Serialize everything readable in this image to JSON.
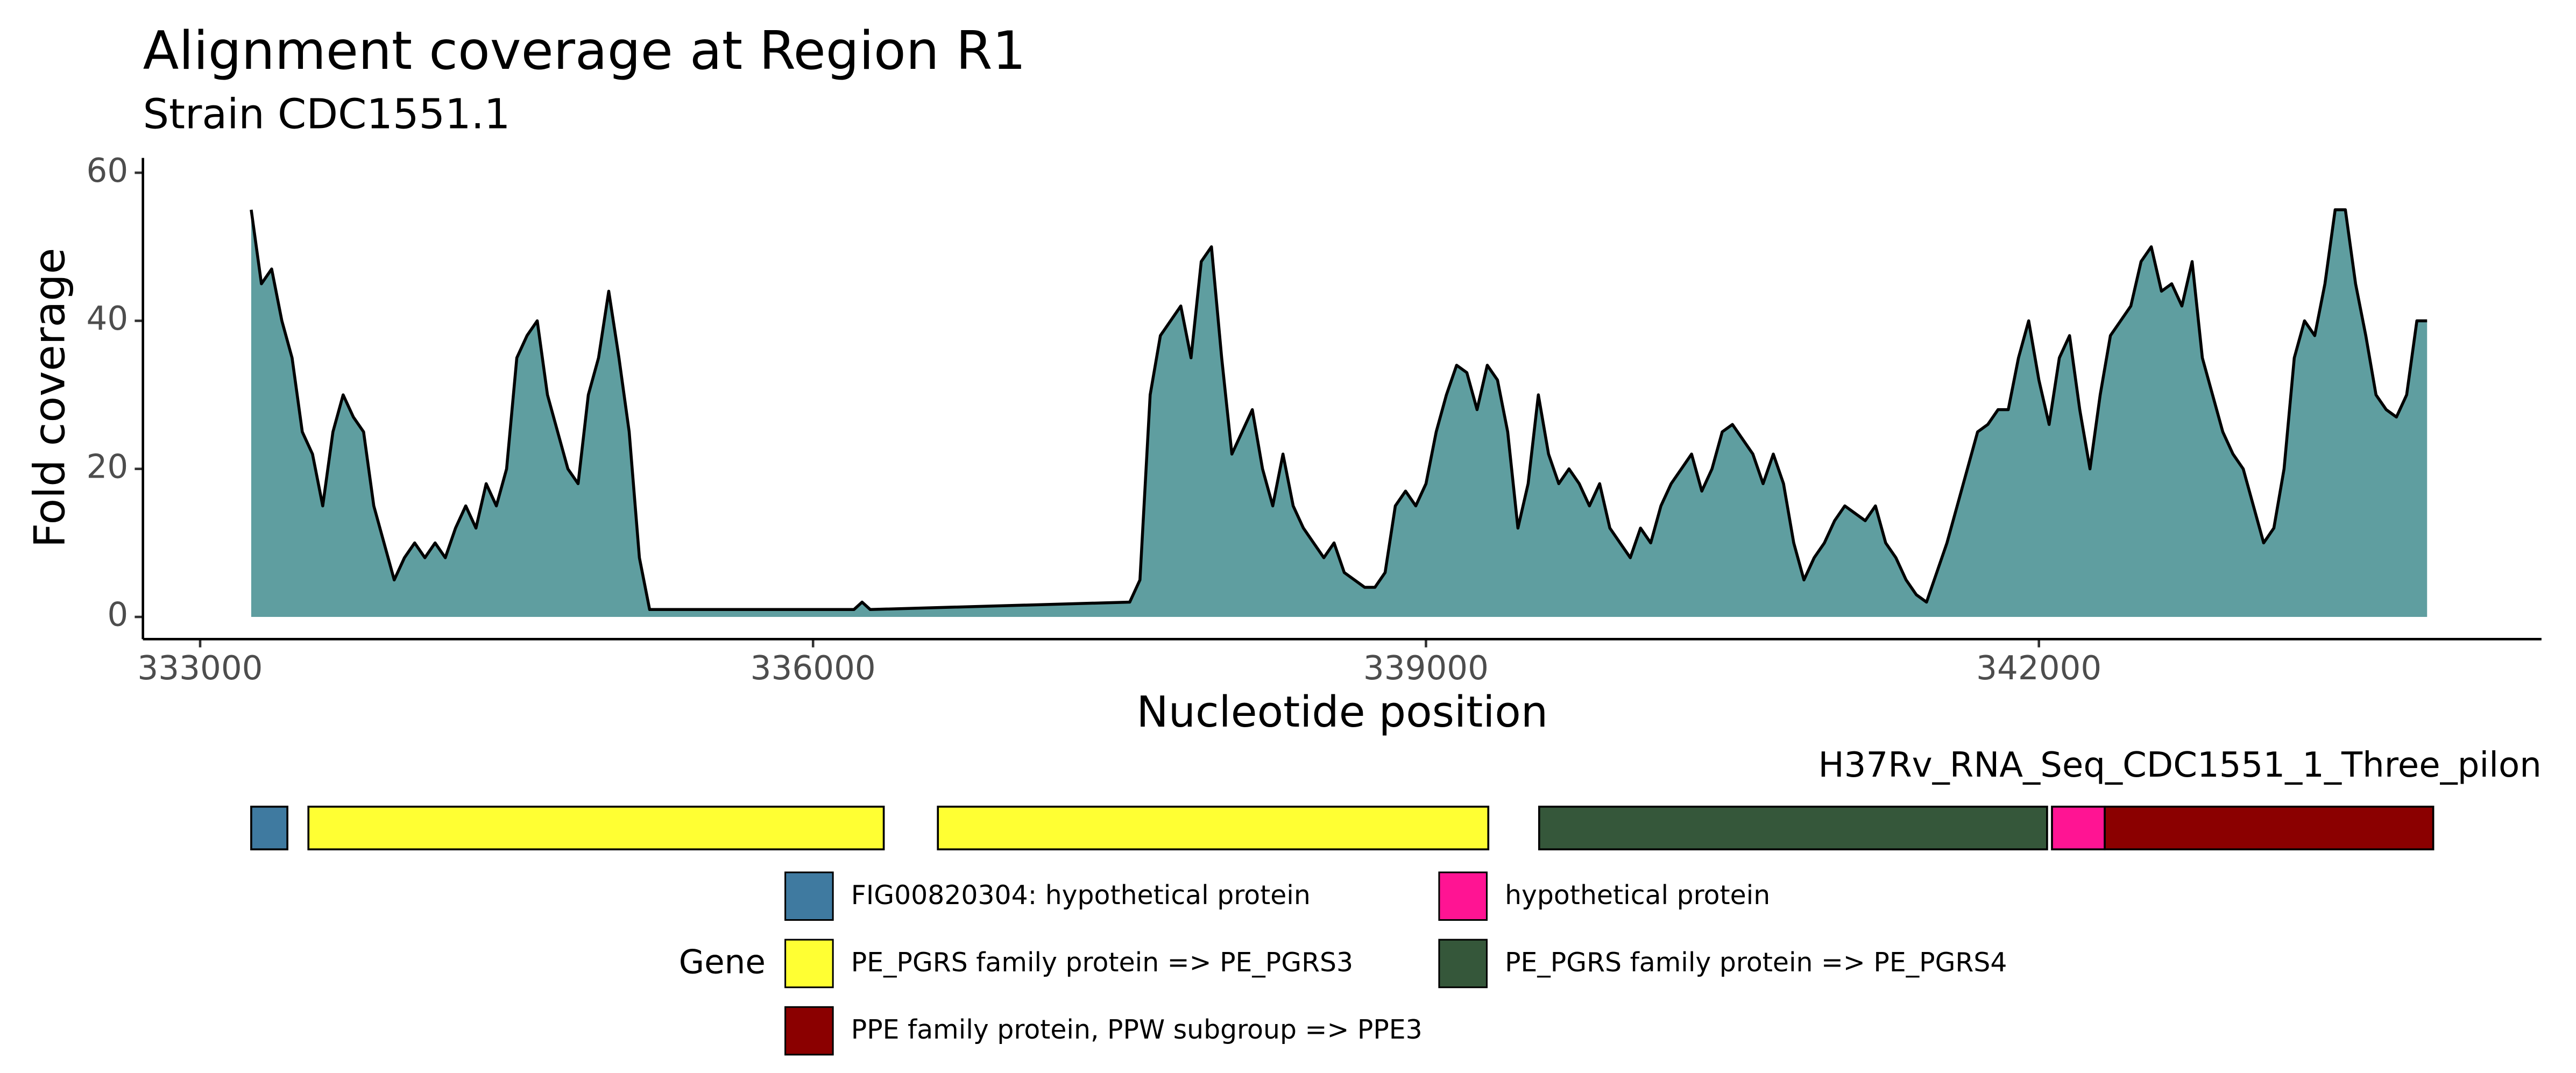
{
  "chart_data": [
    {
      "type": "area",
      "title": "Alignment coverage at Region R1",
      "subtitle": "Strain CDC1551.1",
      "x_label": "Nucleotide position",
      "y_label": "Fold coverage",
      "xlim": [
        332720,
        344460
      ],
      "ylim": [
        -3,
        62
      ],
      "xticks": [
        333000,
        336000,
        339000,
        342000
      ],
      "yticks": [
        0,
        20,
        40,
        60
      ],
      "fill": "#5f9ea0",
      "line_color": "#000000",
      "grid": false,
      "x": [
        333250,
        333300,
        333350,
        333400,
        333450,
        333500,
        333550,
        333600,
        333650,
        333700,
        333750,
        333800,
        333850,
        333900,
        333950,
        334000,
        334050,
        334100,
        334150,
        334200,
        334250,
        334300,
        334350,
        334400,
        334450,
        334500,
        334550,
        334600,
        334650,
        334700,
        334750,
        334800,
        334850,
        334900,
        334950,
        335000,
        335050,
        335100,
        335150,
        335200,
        336200,
        336240,
        336280,
        337550,
        337600,
        337650,
        337700,
        337750,
        337800,
        337850,
        337900,
        337950,
        338000,
        338050,
        338100,
        338150,
        338200,
        338250,
        338300,
        338350,
        338400,
        338450,
        338500,
        338550,
        338600,
        338650,
        338700,
        338750,
        338800,
        338850,
        338900,
        338950,
        339000,
        339050,
        339100,
        339150,
        339200,
        339250,
        339300,
        339350,
        339400,
        339450,
        339500,
        339550,
        339600,
        339650,
        339700,
        339750,
        339800,
        339850,
        339900,
        339950,
        340000,
        340050,
        340100,
        340150,
        340200,
        340250,
        340300,
        340350,
        340400,
        340450,
        340500,
        340550,
        340600,
        340650,
        340700,
        340750,
        340800,
        340850,
        340900,
        340950,
        341000,
        341050,
        341100,
        341150,
        341200,
        341250,
        341300,
        341350,
        341400,
        341450,
        341500,
        341550,
        341600,
        341650,
        341700,
        341750,
        341800,
        341850,
        341900,
        341950,
        342000,
        342050,
        342100,
        342150,
        342200,
        342250,
        342300,
        342350,
        342400,
        342450,
        342500,
        342550,
        342600,
        342650,
        342700,
        342750,
        342800,
        342850,
        342900,
        342950,
        343000,
        343050,
        343100,
        343150,
        343200,
        343250,
        343300,
        343350,
        343400,
        343450,
        343500,
        343550,
        343600,
        343650,
        343700,
        343750,
        343800,
        343850,
        343900
      ],
      "values": [
        55,
        45,
        47,
        40,
        35,
        25,
        22,
        15,
        25,
        30,
        27,
        25,
        15,
        10,
        5,
        8,
        10,
        8,
        10,
        8,
        12,
        15,
        12,
        18,
        15,
        20,
        35,
        38,
        40,
        30,
        25,
        20,
        18,
        30,
        35,
        44,
        35,
        25,
        8,
        1,
        1,
        2,
        1,
        2,
        5,
        30,
        38,
        40,
        42,
        35,
        48,
        50,
        35,
        22,
        25,
        28,
        20,
        15,
        22,
        15,
        12,
        10,
        8,
        10,
        6,
        5,
        4,
        4,
        6,
        15,
        17,
        15,
        18,
        25,
        30,
        34,
        33,
        28,
        34,
        32,
        25,
        12,
        18,
        30,
        22,
        18,
        20,
        18,
        15,
        18,
        12,
        10,
        8,
        12,
        10,
        15,
        18,
        20,
        22,
        17,
        20,
        25,
        26,
        24,
        22,
        18,
        22,
        18,
        10,
        5,
        8,
        10,
        13,
        15,
        14,
        13,
        15,
        10,
        8,
        5,
        3,
        2,
        6,
        10,
        15,
        20,
        25,
        26,
        28,
        28,
        35,
        40,
        32,
        26,
        35,
        38,
        28,
        20,
        30,
        38,
        40,
        42,
        48,
        50,
        44,
        45,
        42,
        48,
        35,
        30,
        25,
        22,
        20,
        15,
        10,
        12,
        20,
        35,
        40,
        38,
        45,
        55,
        55,
        45,
        38,
        30,
        28,
        27,
        30,
        40,
        40
      ]
    },
    {
      "type": "gene-track",
      "title": "H37Rv_RNA_Seq_CDC1551_1_Three_pilon",
      "legend_title": "Gene",
      "genes": [
        {
          "name": "FIG00820304: hypothetical protein",
          "color": "#3f7aa0",
          "segments": [
            [
              333250,
              333427
            ]
          ]
        },
        {
          "name": "PE_PGRS family protein => PE_PGRS3",
          "color": "#ffff33",
          "segments": [
            [
              333530,
              336346
            ],
            [
              336611,
              339305
            ]
          ]
        },
        {
          "name": "PPE family protein, PPW subgroup => PPE3",
          "color": "#8b0000",
          "segments": [
            [
              342322,
              343930
            ]
          ]
        },
        {
          "name": "hypothetical protein",
          "color": "#ff1493",
          "segments": [
            [
              342064,
              342322
            ]
          ]
        },
        {
          "name": "PE_PGRS family protein => PE_PGRS4",
          "color": "#35573a",
          "segments": [
            [
              339554,
              342040
            ]
          ]
        }
      ]
    }
  ]
}
